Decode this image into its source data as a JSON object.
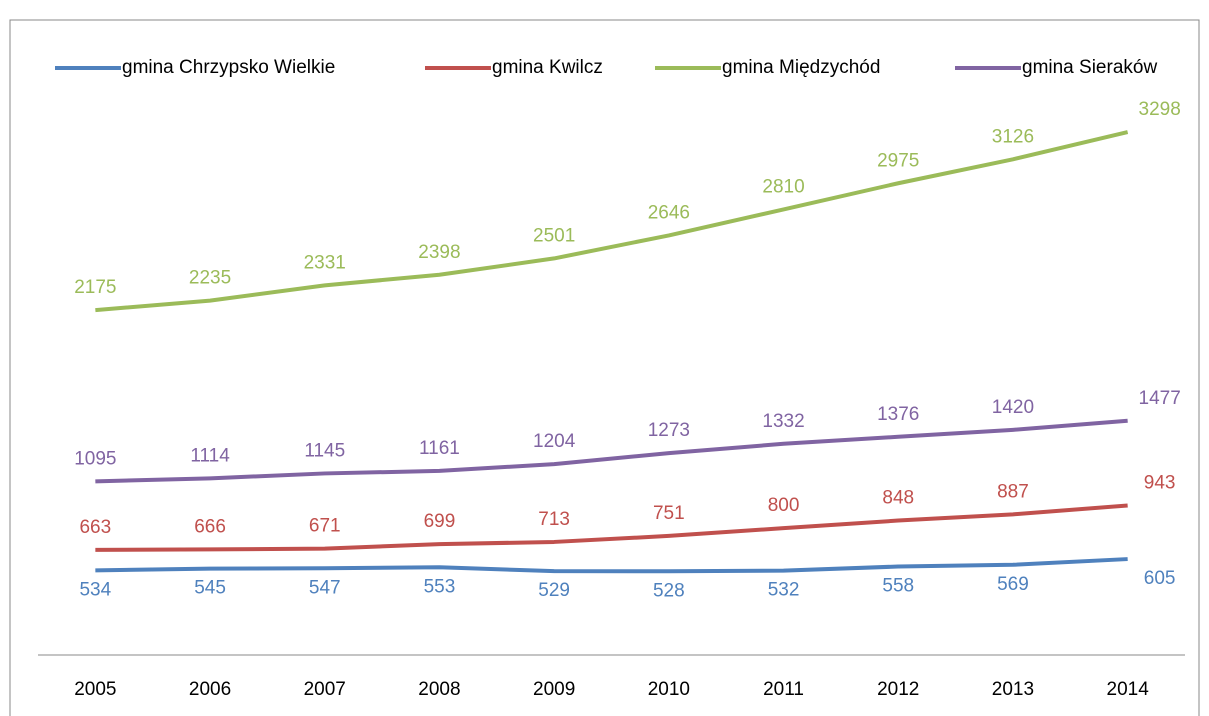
{
  "chart_data": {
    "type": "line",
    "categories": [
      "2005",
      "2006",
      "2007",
      "2008",
      "2009",
      "2010",
      "2011",
      "2012",
      "2013",
      "2014"
    ],
    "series": [
      {
        "name": "gmina Chrzypsko Wielkie",
        "color": "#4f81bd",
        "values": [
          534,
          545,
          547,
          553,
          529,
          528,
          532,
          558,
          569,
          605
        ]
      },
      {
        "name": "gmina Kwilcz",
        "color": "#c0504d",
        "values": [
          663,
          666,
          671,
          699,
          713,
          751,
          800,
          848,
          887,
          943
        ]
      },
      {
        "name": "gmina Międzychód",
        "color": "#9bbb59",
        "values": [
          2175,
          2235,
          2331,
          2398,
          2501,
          2646,
          2810,
          2975,
          3126,
          3298
        ]
      },
      {
        "name": "gmina Sieraków",
        "color": "#8064a2",
        "values": [
          1095,
          1114,
          1145,
          1161,
          1204,
          1273,
          1332,
          1376,
          1420,
          1477
        ]
      }
    ],
    "ylim": [
      0,
      3500
    ],
    "legend": "top"
  }
}
